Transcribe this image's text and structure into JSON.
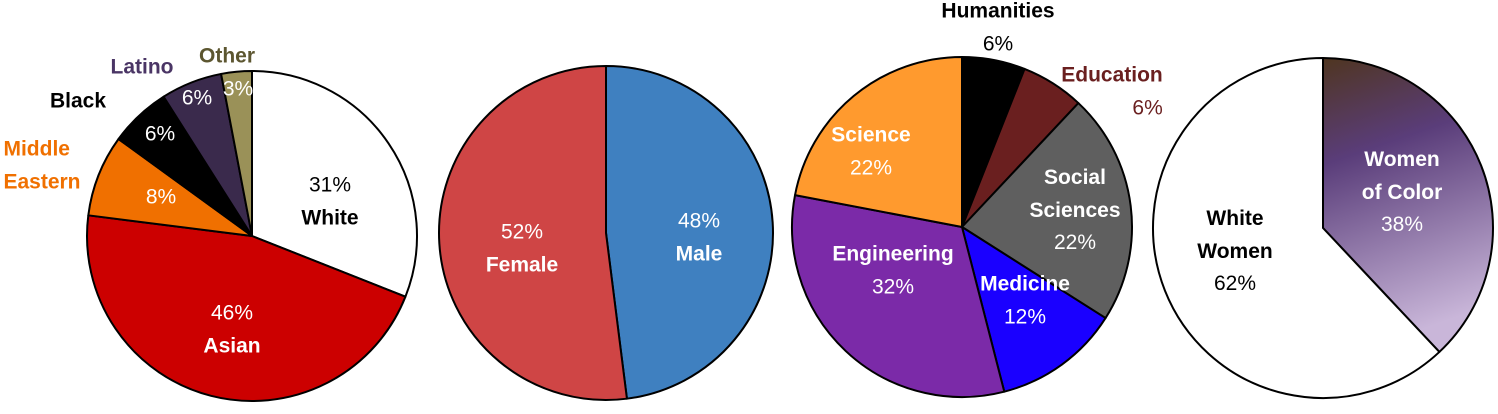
{
  "chart_data": [
    {
      "type": "pie",
      "title": "",
      "slices": [
        {
          "label": "White",
          "value": 31,
          "pct_text": "31%",
          "color": "#ffffff"
        },
        {
          "label": "Asian",
          "value": 46,
          "pct_text": "46%",
          "color": "#cc0000"
        },
        {
          "label": "Middle Eastern",
          "value": 8,
          "pct_text": "8%",
          "color": "#f07000"
        },
        {
          "label": "Black",
          "value": 6,
          "pct_text": "6%",
          "color": "#000000"
        },
        {
          "label": "Latino",
          "value": 6,
          "pct_text": "6%",
          "color": "#3a2a4c"
        },
        {
          "label": "Other",
          "value": 3,
          "pct_text": "3%",
          "color": "#9a9158"
        }
      ],
      "label_colors": {
        "Middle Eastern": "#f07000",
        "Black": "#000000",
        "Latino": "#4a3565",
        "Other": "#5c5630"
      },
      "middle_eastern_lines": [
        "Middle",
        "Eastern"
      ]
    },
    {
      "type": "pie",
      "title": "",
      "slices": [
        {
          "label": "Male",
          "value": 48,
          "pct_text": "48%",
          "color": "#3f80c0"
        },
        {
          "label": "Female",
          "value": 52,
          "pct_text": "52%",
          "color": "#cf4545"
        }
      ]
    },
    {
      "type": "pie",
      "title": "",
      "slices": [
        {
          "label": "Humanities",
          "value": 6,
          "pct_text": "6%",
          "color": "#000000"
        },
        {
          "label": "Education",
          "value": 6,
          "pct_text": "6%",
          "color": "#6a1f1f"
        },
        {
          "label": "Social Sciences",
          "value": 22,
          "pct_text": "22%",
          "color": "#5f5f5f"
        },
        {
          "label": "Medicine",
          "value": 12,
          "pct_text": "12%",
          "color": "#1a00ff"
        },
        {
          "label": "Engineering",
          "value": 32,
          "pct_text": "32%",
          "color": "#7b2aa8"
        },
        {
          "label": "Science",
          "value": 22,
          "pct_text": "22%",
          "color": "#ff9a2e"
        }
      ],
      "label_colors": {
        "Education": "#6a1f1f"
      },
      "social_sciences_lines": [
        "Social",
        "Sciences"
      ]
    },
    {
      "type": "pie",
      "title": "",
      "slices": [
        {
          "label": "Women of Color",
          "value": 38,
          "pct_text": "38%",
          "color": "#6b4a86"
        },
        {
          "label": "White Women",
          "value": 62,
          "pct_text": "62%",
          "color": "#ffffff"
        }
      ],
      "women_of_color_lines": [
        "Women",
        "of Color"
      ],
      "white_women_lines": [
        "White",
        "Women"
      ]
    }
  ]
}
